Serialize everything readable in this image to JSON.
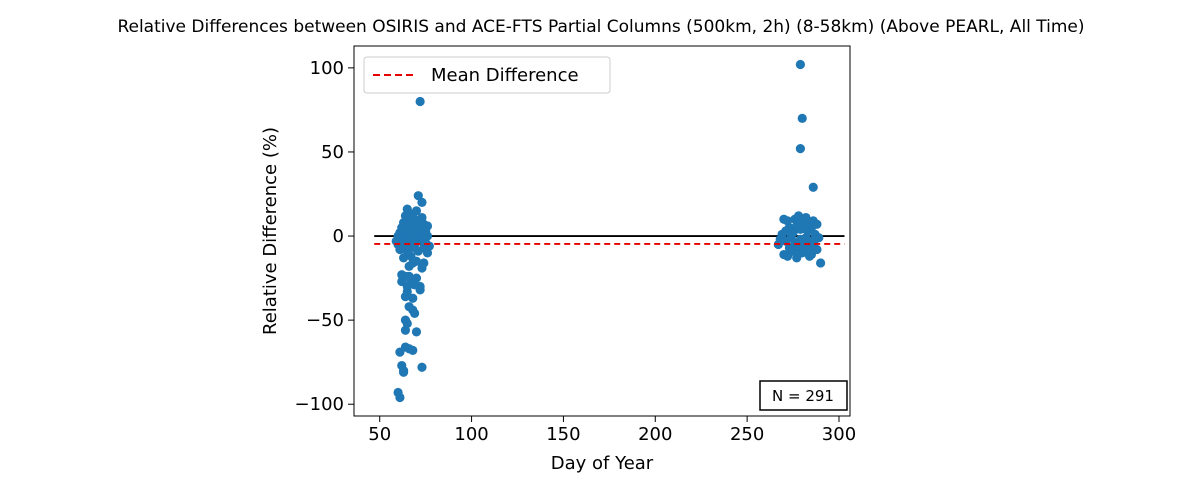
{
  "chart_data": {
    "type": "scatter",
    "title": "Relative Differences between OSIRIS and ACE-FTS Partial Columns (500km, 2h) (8-58km) (Above PEARL, All Time)",
    "xlabel": "Day of Year",
    "ylabel": "Relative Difference (%)",
    "xlim": [
      36,
      306
    ],
    "ylim": [
      -107,
      113
    ],
    "xticks": [
      50,
      100,
      150,
      200,
      250,
      300
    ],
    "xtick_labels": [
      "50",
      "100",
      "150",
      "200",
      "250",
      "300"
    ],
    "yticks": [
      -100,
      -50,
      0,
      50,
      100
    ],
    "ytick_labels": [
      "−100",
      "−50",
      "0",
      "50",
      "100"
    ],
    "grid": false,
    "legend": {
      "position": "top-left",
      "entries": [
        {
          "label": "Mean Difference",
          "style": "dashed",
          "color": "#e60000"
        }
      ]
    },
    "annotation": "N = 291",
    "zero_line": {
      "y": 0,
      "x_range": [
        47,
        303
      ],
      "color": "#000000"
    },
    "mean_line": {
      "y": -4.7,
      "x_range": [
        47,
        303
      ],
      "color": "#e60000"
    },
    "marker_color": "#1f77b4",
    "points": [
      [
        60,
        -93
      ],
      [
        61,
        -96
      ],
      [
        62,
        -77
      ],
      [
        63,
        -80
      ],
      [
        63,
        -81
      ],
      [
        61,
        -69
      ],
      [
        64,
        -66
      ],
      [
        66,
        -67
      ],
      [
        68,
        -68
      ],
      [
        73,
        -78
      ],
      [
        64,
        -56
      ],
      [
        64,
        -50
      ],
      [
        65,
        -52
      ],
      [
        70,
        -57
      ],
      [
        68,
        -44
      ],
      [
        66,
        -42
      ],
      [
        69,
        -46
      ],
      [
        64,
        -36
      ],
      [
        65,
        -33
      ],
      [
        68,
        -37
      ],
      [
        72,
        -32
      ],
      [
        72,
        -30
      ],
      [
        69,
        -29
      ],
      [
        65,
        -30
      ],
      [
        67,
        -27
      ],
      [
        62,
        -27
      ],
      [
        62,
        -23
      ],
      [
        64,
        -24
      ],
      [
        66,
        -24
      ],
      [
        70,
        -25
      ],
      [
        66,
        -18
      ],
      [
        68,
        -16
      ],
      [
        73,
        -19
      ],
      [
        63,
        -13
      ],
      [
        67,
        -12
      ],
      [
        70,
        -15
      ],
      [
        74,
        -16
      ],
      [
        76,
        -10
      ],
      [
        61,
        -8
      ],
      [
        65,
        -9
      ],
      [
        60,
        -5
      ],
      [
        62,
        -6
      ],
      [
        66,
        -6
      ],
      [
        69,
        -7
      ],
      [
        71,
        -9
      ],
      [
        74,
        -7
      ],
      [
        77,
        -6
      ],
      [
        59,
        -3
      ],
      [
        61,
        -2
      ],
      [
        63,
        -4
      ],
      [
        65,
        -3
      ],
      [
        67,
        -2
      ],
      [
        69,
        -4
      ],
      [
        71,
        -3
      ],
      [
        73,
        -2
      ],
      [
        75,
        -4
      ],
      [
        60,
        0
      ],
      [
        62,
        1
      ],
      [
        64,
        0
      ],
      [
        66,
        -1
      ],
      [
        68,
        1
      ],
      [
        70,
        0
      ],
      [
        72,
        1
      ],
      [
        74,
        -1
      ],
      [
        76,
        0
      ],
      [
        61,
        2
      ],
      [
        63,
        3
      ],
      [
        65,
        4
      ],
      [
        67,
        2
      ],
      [
        69,
        3
      ],
      [
        71,
        2
      ],
      [
        73,
        4
      ],
      [
        75,
        3
      ],
      [
        62,
        5
      ],
      [
        64,
        6
      ],
      [
        66,
        5
      ],
      [
        68,
        7
      ],
      [
        70,
        6
      ],
      [
        72,
        5
      ],
      [
        74,
        7
      ],
      [
        76,
        6
      ],
      [
        63,
        8
      ],
      [
        65,
        9
      ],
      [
        67,
        8
      ],
      [
        69,
        10
      ],
      [
        71,
        9
      ],
      [
        64,
        12
      ],
      [
        68,
        13
      ],
      [
        73,
        11
      ],
      [
        65,
        16
      ],
      [
        70,
        15
      ],
      [
        73,
        20
      ],
      [
        71,
        24
      ],
      [
        72,
        80
      ],
      [
        267,
        -5
      ],
      [
        268,
        -2
      ],
      [
        270,
        -11
      ],
      [
        271,
        -3
      ],
      [
        272,
        -12
      ],
      [
        273,
        -7
      ],
      [
        274,
        -1
      ],
      [
        275,
        -9
      ],
      [
        276,
        -4
      ],
      [
        277,
        -13
      ],
      [
        278,
        -6
      ],
      [
        279,
        -2
      ],
      [
        280,
        -10
      ],
      [
        281,
        -5
      ],
      [
        282,
        -1
      ],
      [
        283,
        -8
      ],
      [
        284,
        -3
      ],
      [
        285,
        -11
      ],
      [
        286,
        -6
      ],
      [
        287,
        -2
      ],
      [
        288,
        -8
      ],
      [
        290,
        -16
      ],
      [
        269,
        1
      ],
      [
        271,
        3
      ],
      [
        273,
        5
      ],
      [
        275,
        2
      ],
      [
        277,
        6
      ],
      [
        279,
        4
      ],
      [
        281,
        7
      ],
      [
        283,
        3
      ],
      [
        285,
        5
      ],
      [
        287,
        1
      ],
      [
        272,
        9
      ],
      [
        276,
        10
      ],
      [
        278,
        12
      ],
      [
        280,
        8
      ],
      [
        282,
        11
      ],
      [
        284,
        7
      ],
      [
        286,
        9
      ],
      [
        270,
        10
      ],
      [
        288,
        7
      ],
      [
        289,
        -1
      ],
      [
        277,
        -11
      ],
      [
        284,
        -12
      ],
      [
        279,
        52
      ],
      [
        280,
        70
      ],
      [
        279,
        102
      ],
      [
        286,
        29
      ]
    ]
  }
}
